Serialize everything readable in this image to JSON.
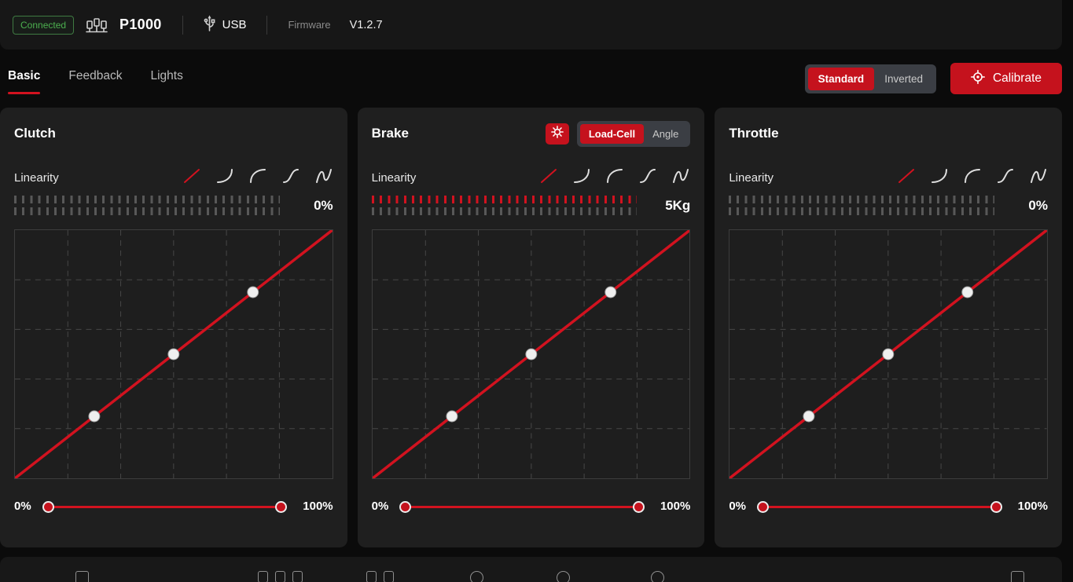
{
  "header": {
    "status_badge": "Connected",
    "device_name": "P1000",
    "connection_type": "USB",
    "firmware_label": "Firmware",
    "firmware_version": "V1.2.7"
  },
  "tabs": {
    "items": [
      {
        "label": "Basic",
        "active": true
      },
      {
        "label": "Feedback",
        "active": false
      },
      {
        "label": "Lights",
        "active": false
      }
    ]
  },
  "orientation_toggle": {
    "standard": "Standard",
    "inverted": "Inverted",
    "selected": "Standard"
  },
  "calibrate": {
    "label": "Calibrate",
    "icon": "gear-target-icon"
  },
  "linearity_options": [
    "linear",
    "ease-out",
    "ease-in",
    "s-curve",
    "wave"
  ],
  "panels": [
    {
      "title": "Clutch",
      "linearity_label": "Linearity",
      "linearity_selected": "linear",
      "deadzone_value": "0%",
      "slider_min": "0%",
      "slider_max": "100%",
      "slider_handles": [
        0,
        100
      ],
      "ticks_highlighted": false
    },
    {
      "title": "Brake",
      "mode_toggle": {
        "load_cell": "Load-Cell",
        "angle": "Angle",
        "selected": "Load-Cell"
      },
      "linearity_label": "Linearity",
      "linearity_selected": "linear",
      "deadzone_value": "5Kg",
      "slider_min": "0%",
      "slider_max": "100%",
      "slider_handles": [
        0,
        100
      ],
      "ticks_highlighted": true
    },
    {
      "title": "Throttle",
      "linearity_label": "Linearity",
      "linearity_selected": "linear",
      "deadzone_value": "0%",
      "slider_min": "0%",
      "slider_max": "100%",
      "slider_handles": [
        0,
        100
      ],
      "ticks_highlighted": false
    }
  ],
  "chart_data": [
    {
      "type": "line",
      "panel": "Clutch",
      "x_range": [
        0,
        100
      ],
      "y_range": [
        0,
        100
      ],
      "points": [
        [
          0,
          0
        ],
        [
          100,
          100
        ]
      ],
      "control_points": [
        [
          25,
          25
        ],
        [
          50,
          50
        ],
        [
          75,
          75
        ]
      ],
      "grid": {
        "cols": 6,
        "rows": 5,
        "style": "dashed"
      },
      "line_color": "#d2121f"
    },
    {
      "type": "line",
      "panel": "Brake",
      "x_range": [
        0,
        100
      ],
      "y_range": [
        0,
        100
      ],
      "points": [
        [
          0,
          0
        ],
        [
          100,
          100
        ]
      ],
      "control_points": [
        [
          25,
          25
        ],
        [
          50,
          50
        ],
        [
          75,
          75
        ]
      ],
      "grid": {
        "cols": 6,
        "rows": 5,
        "style": "dashed"
      },
      "line_color": "#d2121f"
    },
    {
      "type": "line",
      "panel": "Throttle",
      "x_range": [
        0,
        100
      ],
      "y_range": [
        0,
        100
      ],
      "points": [
        [
          0,
          0
        ],
        [
          100,
          100
        ]
      ],
      "control_points": [
        [
          25,
          25
        ],
        [
          50,
          50
        ],
        [
          75,
          75
        ]
      ],
      "grid": {
        "cols": 6,
        "rows": 5,
        "style": "dashed"
      },
      "line_color": "#d2121f"
    }
  ],
  "footer": {
    "icons": [
      "device-icon",
      "pedal-set-icon",
      "layout-icon",
      "gauge-icon",
      "gauge-icon",
      "gauge-icon",
      "panel-icon"
    ]
  },
  "colors": {
    "accent_red": "#d2121f",
    "button_red": "#c5121d",
    "connected_green": "#4cb04f",
    "panel_bg": "#1f1f1f",
    "page_bg": "#0b0b0b"
  }
}
